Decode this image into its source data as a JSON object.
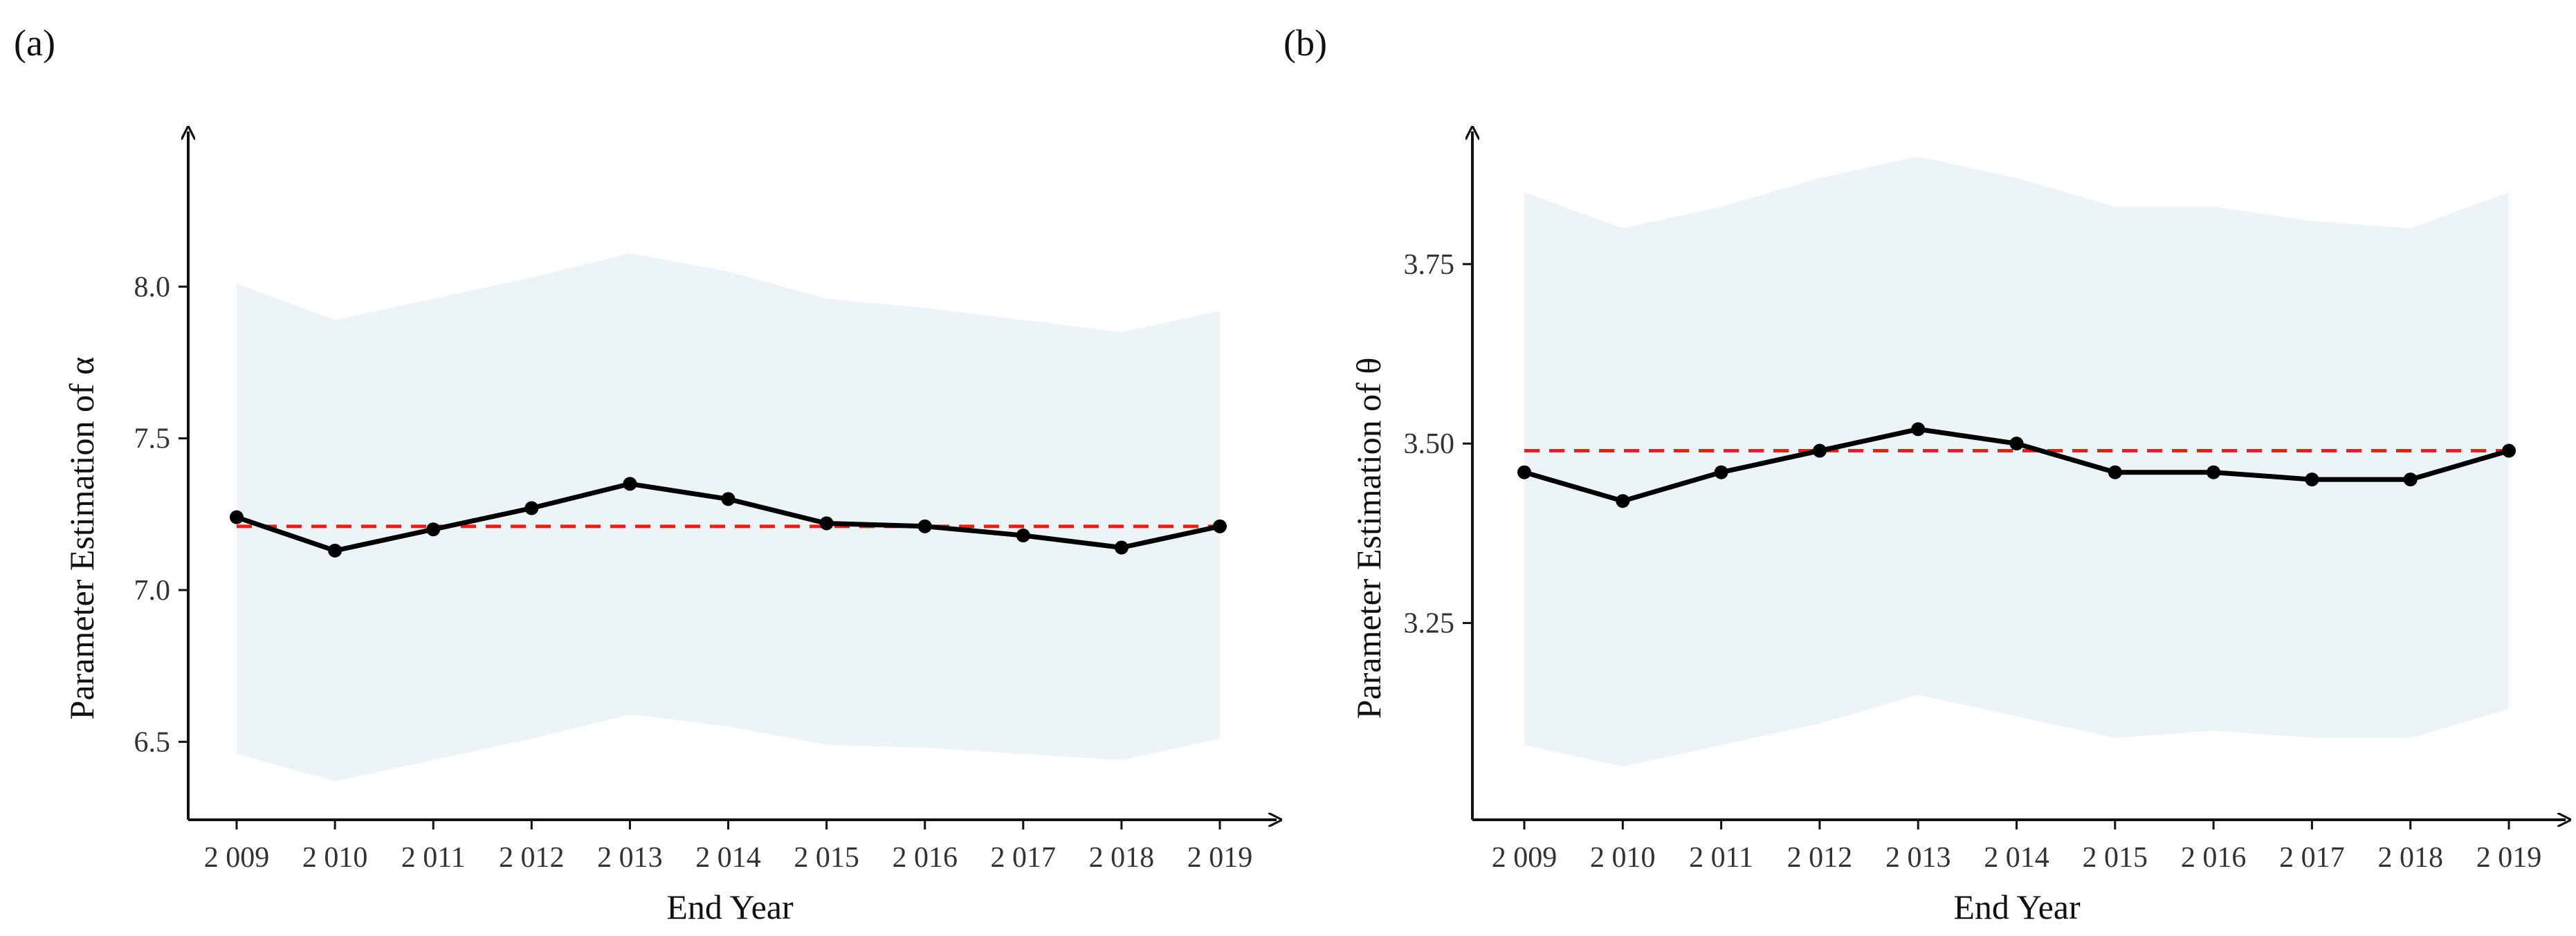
{
  "chart_data": [
    {
      "type": "line",
      "panel_label": "(a)",
      "title": "",
      "xlabel": "End Year",
      "ylabel": "Parameter Estimation of α",
      "categories": [
        "2 009",
        "2 010",
        "2 011",
        "2 012",
        "2 013",
        "2 014",
        "2 015",
        "2 016",
        "2 017",
        "2 018",
        "2 019"
      ],
      "ylim": [
        6.3,
        8.5
      ],
      "yticks": [
        6.5,
        7.0,
        7.5,
        8.0
      ],
      "ytick_labels": [
        "6.5",
        "7.0",
        "7.5",
        "8.0"
      ],
      "series": [
        {
          "name": "estimate",
          "values": [
            7.24,
            7.13,
            7.2,
            7.27,
            7.35,
            7.3,
            7.22,
            7.21,
            7.18,
            7.14,
            7.21
          ],
          "color": "#000000"
        }
      ],
      "band": {
        "lower": [
          6.46,
          6.37,
          6.44,
          6.51,
          6.59,
          6.55,
          6.49,
          6.48,
          6.46,
          6.44,
          6.51
        ],
        "upper": [
          8.01,
          7.89,
          7.96,
          8.03,
          8.11,
          8.05,
          7.96,
          7.93,
          7.89,
          7.85,
          7.92
        ],
        "color": "#edf4f8"
      },
      "reference_line": {
        "value": 7.21,
        "color": "#e8201c",
        "style": "dashed"
      },
      "grid": false
    },
    {
      "type": "line",
      "panel_label": "(b)",
      "title": "",
      "xlabel": "End Year",
      "ylabel": "Parameter Estimation of θ",
      "categories": [
        "2 009",
        "2 010",
        "2 011",
        "2 012",
        "2 013",
        "2 014",
        "2 015",
        "2 016",
        "2 017",
        "2 018",
        "2 019"
      ],
      "ylim": [
        3.0,
        3.93
      ],
      "yticks": [
        3.25,
        3.5,
        3.75
      ],
      "ytick_labels": [
        "3.25",
        "3.50",
        "3.75"
      ],
      "series": [
        {
          "name": "estimate",
          "values": [
            3.46,
            3.42,
            3.46,
            3.49,
            3.52,
            3.5,
            3.46,
            3.46,
            3.45,
            3.45,
            3.49
          ],
          "color": "#000000"
        }
      ],
      "band": {
        "lower": [
          3.08,
          3.05,
          3.08,
          3.11,
          3.15,
          3.12,
          3.09,
          3.1,
          3.09,
          3.09,
          3.13
        ],
        "upper": [
          3.85,
          3.8,
          3.83,
          3.87,
          3.9,
          3.87,
          3.83,
          3.83,
          3.81,
          3.8,
          3.85
        ],
        "color": "#edf4f8"
      },
      "reference_line": {
        "value": 3.49,
        "color": "#e8201c",
        "style": "dashed"
      },
      "grid": false
    }
  ]
}
